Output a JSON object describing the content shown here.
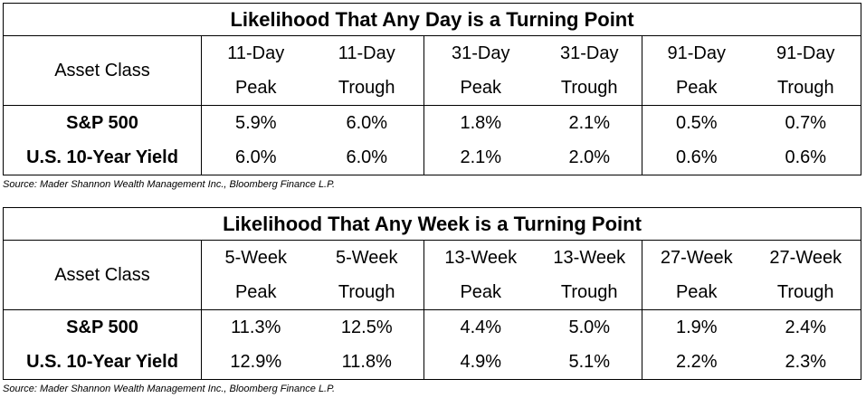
{
  "tables": [
    {
      "title": "Likelihood That Any Day is a Turning Point",
      "asset_class_label": "Asset Class",
      "columns": [
        {
          "line1": "11-Day",
          "line2": "Peak"
        },
        {
          "line1": "11-Day",
          "line2": "Trough"
        },
        {
          "line1": "31-Day",
          "line2": "Peak"
        },
        {
          "line1": "31-Day",
          "line2": "Trough"
        },
        {
          "line1": "91-Day",
          "line2": "Peak"
        },
        {
          "line1": "91-Day",
          "line2": "Trough"
        }
      ],
      "rows": [
        {
          "name": "S&P 500",
          "values": [
            "5.9%",
            "6.0%",
            "1.8%",
            "2.1%",
            "0.5%",
            "0.7%"
          ]
        },
        {
          "name": "U.S. 10-Year Yield",
          "values": [
            "6.0%",
            "6.0%",
            "2.1%",
            "2.0%",
            "0.6%",
            "0.6%"
          ]
        }
      ],
      "source": "Source: Mader Shannon Wealth Management Inc., Bloomberg Finance L.P."
    },
    {
      "title": "Likelihood That Any Week is a Turning Point",
      "asset_class_label": "Asset Class",
      "columns": [
        {
          "line1": "5-Week",
          "line2": "Peak"
        },
        {
          "line1": "5-Week",
          "line2": "Trough"
        },
        {
          "line1": "13-Week",
          "line2": "Peak"
        },
        {
          "line1": "13-Week",
          "line2": "Trough"
        },
        {
          "line1": "27-Week",
          "line2": "Peak"
        },
        {
          "line1": "27-Week",
          "line2": "Trough"
        }
      ],
      "rows": [
        {
          "name": "S&P 500",
          "values": [
            "11.3%",
            "12.5%",
            "4.4%",
            "5.0%",
            "1.9%",
            "2.4%"
          ]
        },
        {
          "name": "U.S. 10-Year Yield",
          "values": [
            "12.9%",
            "11.8%",
            "4.9%",
            "5.1%",
            "2.2%",
            "2.3%"
          ]
        }
      ],
      "source": "Source: Mader Shannon Wealth Management Inc., Bloomberg Finance L.P."
    }
  ]
}
